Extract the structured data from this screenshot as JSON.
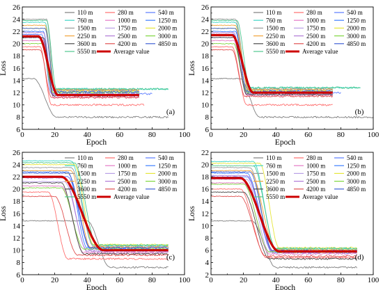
{
  "chart_data": [
    {
      "type": "line",
      "panel_label": "(a)",
      "xlabel": "Epoch",
      "ylabel": "Loss",
      "xlim": [
        0,
        100
      ],
      "ylim": [
        6,
        26
      ],
      "xticks": [
        0,
        20,
        40,
        60,
        80,
        100
      ],
      "yticks": [
        6,
        8,
        10,
        12,
        14,
        16,
        18,
        20,
        22,
        24,
        26
      ],
      "legend_position": "top-right",
      "series": [
        {
          "name": "110 m",
          "color": "#7f7f7f",
          "start": 14.3,
          "end": 8.0,
          "drop_start": 7,
          "drop_end": 21,
          "last_epoch": 90
        },
        {
          "name": "280 m",
          "color": "#ff6f6f",
          "start": 19.5,
          "end": 10.0,
          "drop_start": 11,
          "drop_end": 18,
          "last_epoch": 75
        },
        {
          "name": "540 m",
          "color": "#5b7cff",
          "start": 21.5,
          "end": 11.8,
          "drop_start": 12,
          "drop_end": 18,
          "last_epoch": 80
        },
        {
          "name": "760 m",
          "color": "#3fd6c6",
          "start": 23.5,
          "end": 12.6,
          "drop_start": 14,
          "drop_end": 20,
          "last_epoch": 90
        },
        {
          "name": "1000 m",
          "color": "#e57ac6",
          "start": 20.5,
          "end": 11.3,
          "drop_start": 13,
          "drop_end": 19,
          "last_epoch": 72
        },
        {
          "name": "1250 m",
          "color": "#3f7fff",
          "start": 22.0,
          "end": 12.3,
          "drop_start": 13,
          "drop_end": 19,
          "last_epoch": 72
        },
        {
          "name": "1500 m",
          "color": "#9a9a9a",
          "start": 24.0,
          "end": 12.5,
          "drop_start": 15,
          "drop_end": 20,
          "last_epoch": 72
        },
        {
          "name": "1750 m",
          "color": "#b8a0e6",
          "start": 21.0,
          "end": 11.8,
          "drop_start": 13,
          "drop_end": 19,
          "last_epoch": 72
        },
        {
          "name": "2000 m",
          "color": "#e6e63a",
          "start": 22.5,
          "end": 12.2,
          "drop_start": 14,
          "drop_end": 20,
          "last_epoch": 72
        },
        {
          "name": "2250 m",
          "color": "#f2a43a",
          "start": 23.0,
          "end": 12.4,
          "drop_start": 14,
          "drop_end": 20,
          "last_epoch": 72
        },
        {
          "name": "2500 m",
          "color": "#b07ad6",
          "start": 21.8,
          "end": 11.6,
          "drop_start": 13,
          "drop_end": 19,
          "last_epoch": 72
        },
        {
          "name": "3000 m",
          "color": "#7fd63f",
          "start": 20.0,
          "end": 12.0,
          "drop_start": 12,
          "drop_end": 19,
          "last_epoch": 72
        },
        {
          "name": "3600 m",
          "color": "#4a4a4a",
          "start": 21.0,
          "end": 11.5,
          "drop_start": 13,
          "drop_end": 19,
          "last_epoch": 72
        },
        {
          "name": "4200 m",
          "color": "#e05050",
          "start": 19.0,
          "end": 11.2,
          "drop_start": 11,
          "drop_end": 18,
          "last_epoch": 72
        },
        {
          "name": "4850 m",
          "color": "#3f5fd6",
          "start": 22.5,
          "end": 12.1,
          "drop_start": 14,
          "drop_end": 20,
          "last_epoch": 72
        },
        {
          "name": "5550 m",
          "color": "#50c890",
          "start": 23.8,
          "end": 12.6,
          "drop_start": 15,
          "drop_end": 21,
          "last_epoch": 90
        },
        {
          "name": "Average value",
          "color": "#cc0000",
          "start": 21.2,
          "end": 11.6,
          "drop_start": 10,
          "drop_end": 22,
          "last_epoch": 72,
          "bold": true
        }
      ]
    },
    {
      "type": "line",
      "panel_label": "(b)",
      "xlabel": "Epoch",
      "ylabel": "Loss",
      "xlim": [
        0,
        100
      ],
      "ylim": [
        6,
        26
      ],
      "xticks": [
        0,
        20,
        40,
        60,
        80,
        100
      ],
      "yticks": [
        6,
        8,
        10,
        12,
        14,
        16,
        18,
        20,
        22,
        24,
        26
      ],
      "legend_position": "top-right",
      "series": [
        {
          "name": "110 m",
          "color": "#7f7f7f",
          "start": 14.3,
          "end": 8.0,
          "drop_start": 18,
          "drop_end": 30,
          "last_epoch": 100
        },
        {
          "name": "280 m",
          "color": "#ff6f6f",
          "start": 19.5,
          "end": 10.0,
          "drop_start": 13,
          "drop_end": 22,
          "last_epoch": 75
        },
        {
          "name": "540 m",
          "color": "#5b7cff",
          "start": 21.5,
          "end": 12.0,
          "drop_start": 14,
          "drop_end": 22,
          "last_epoch": 80
        },
        {
          "name": "760 m",
          "color": "#3fd6c6",
          "start": 23.5,
          "end": 12.8,
          "drop_start": 15,
          "drop_end": 23,
          "last_epoch": 92
        },
        {
          "name": "1000 m",
          "color": "#e57ac6",
          "start": 20.5,
          "end": 11.6,
          "drop_start": 14,
          "drop_end": 22,
          "last_epoch": 75
        },
        {
          "name": "1250 m",
          "color": "#3f7fff",
          "start": 22.0,
          "end": 12.4,
          "drop_start": 15,
          "drop_end": 22,
          "last_epoch": 75
        },
        {
          "name": "1500 m",
          "color": "#9a9a9a",
          "start": 24.0,
          "end": 12.6,
          "drop_start": 15,
          "drop_end": 23,
          "last_epoch": 75
        },
        {
          "name": "1750 m",
          "color": "#b8a0e6",
          "start": 21.0,
          "end": 12.0,
          "drop_start": 14,
          "drop_end": 22,
          "last_epoch": 75
        },
        {
          "name": "2000 m",
          "color": "#e6e63a",
          "start": 22.5,
          "end": 12.3,
          "drop_start": 15,
          "drop_end": 22,
          "last_epoch": 75
        },
        {
          "name": "2250 m",
          "color": "#f2a43a",
          "start": 23.0,
          "end": 12.5,
          "drop_start": 15,
          "drop_end": 23,
          "last_epoch": 75
        },
        {
          "name": "2500 m",
          "color": "#b07ad6",
          "start": 21.8,
          "end": 11.8,
          "drop_start": 14,
          "drop_end": 22,
          "last_epoch": 75
        },
        {
          "name": "3000 m",
          "color": "#7fd63f",
          "start": 20.0,
          "end": 12.1,
          "drop_start": 14,
          "drop_end": 22,
          "last_epoch": 75
        },
        {
          "name": "3600 m",
          "color": "#4a4a4a",
          "start": 21.0,
          "end": 11.7,
          "drop_start": 14,
          "drop_end": 22,
          "last_epoch": 75
        },
        {
          "name": "4200 m",
          "color": "#e05050",
          "start": 19.0,
          "end": 11.4,
          "drop_start": 13,
          "drop_end": 21,
          "last_epoch": 75
        },
        {
          "name": "4850 m",
          "color": "#3f5fd6",
          "start": 22.5,
          "end": 12.2,
          "drop_start": 15,
          "drop_end": 22,
          "last_epoch": 75
        },
        {
          "name": "5550 m",
          "color": "#50c890",
          "start": 23.8,
          "end": 12.8,
          "drop_start": 16,
          "drop_end": 24,
          "last_epoch": 92
        },
        {
          "name": "Average value",
          "color": "#cc0000",
          "start": 21.4,
          "end": 12.0,
          "drop_start": 13,
          "drop_end": 26,
          "last_epoch": 75,
          "bold": true
        }
      ]
    },
    {
      "type": "line",
      "panel_label": "(c)",
      "xlabel": "Epoch",
      "ylabel": "Loss",
      "xlim": [
        0,
        100
      ],
      "ylim": [
        6,
        26
      ],
      "xticks": [
        0,
        20,
        40,
        60,
        80,
        100
      ],
      "yticks": [
        6,
        8,
        10,
        12,
        14,
        16,
        18,
        20,
        22,
        24,
        26
      ],
      "legend_position": "top-right",
      "series": [
        {
          "name": "110 m",
          "color": "#7f7f7f",
          "start": 14.8,
          "end": 7.2,
          "drop_start": 40,
          "drop_end": 54,
          "last_epoch": 90
        },
        {
          "name": "280 m",
          "color": "#ff6f6f",
          "start": 19.5,
          "end": 8.6,
          "drop_start": 16,
          "drop_end": 28,
          "last_epoch": 90
        },
        {
          "name": "540 m",
          "color": "#5b7cff",
          "start": 22.0,
          "end": 10.2,
          "drop_start": 28,
          "drop_end": 42,
          "last_epoch": 90
        },
        {
          "name": "760 m",
          "color": "#3fd6c6",
          "start": 24.6,
          "end": 10.8,
          "drop_start": 30,
          "drop_end": 44,
          "last_epoch": 90
        },
        {
          "name": "1000 m",
          "color": "#e57ac6",
          "start": 20.5,
          "end": 9.6,
          "drop_start": 24,
          "drop_end": 38,
          "last_epoch": 90
        },
        {
          "name": "1250 m",
          "color": "#3f7fff",
          "start": 22.8,
          "end": 10.4,
          "drop_start": 28,
          "drop_end": 40,
          "last_epoch": 90
        },
        {
          "name": "1500 m",
          "color": "#9a9a9a",
          "start": 23.5,
          "end": 10.6,
          "drop_start": 30,
          "drop_end": 44,
          "last_epoch": 90
        },
        {
          "name": "1750 m",
          "color": "#b8a0e6",
          "start": 21.2,
          "end": 10.0,
          "drop_start": 26,
          "drop_end": 40,
          "last_epoch": 90
        },
        {
          "name": "2000 m",
          "color": "#e6e63a",
          "start": 24.0,
          "end": 10.9,
          "drop_start": 32,
          "drop_end": 44,
          "last_epoch": 90
        },
        {
          "name": "2250 m",
          "color": "#f2a43a",
          "start": 23.0,
          "end": 10.5,
          "drop_start": 30,
          "drop_end": 42,
          "last_epoch": 90
        },
        {
          "name": "2500 m",
          "color": "#b07ad6",
          "start": 21.8,
          "end": 9.8,
          "drop_start": 26,
          "drop_end": 40,
          "last_epoch": 90
        },
        {
          "name": "3000 m",
          "color": "#7fd63f",
          "start": 20.2,
          "end": 10.2,
          "drop_start": 24,
          "drop_end": 38,
          "last_epoch": 90
        },
        {
          "name": "3600 m",
          "color": "#4a4a4a",
          "start": 21.0,
          "end": 9.4,
          "drop_start": 24,
          "drop_end": 38,
          "last_epoch": 90
        },
        {
          "name": "4200 m",
          "color": "#e05050",
          "start": 18.8,
          "end": 9.2,
          "drop_start": 20,
          "drop_end": 34,
          "last_epoch": 90
        },
        {
          "name": "4850 m",
          "color": "#3f5fd6",
          "start": 22.6,
          "end": 10.4,
          "drop_start": 28,
          "drop_end": 42,
          "last_epoch": 90
        },
        {
          "name": "5550 m",
          "color": "#50c890",
          "start": 24.3,
          "end": 10.8,
          "drop_start": 32,
          "drop_end": 46,
          "last_epoch": 90
        },
        {
          "name": "Average value",
          "color": "#cc0000",
          "start": 22.0,
          "end": 10.0,
          "drop_start": 24,
          "drop_end": 50,
          "last_epoch": 90,
          "bold": true
        }
      ]
    },
    {
      "type": "line",
      "panel_label": "(d)",
      "xlabel": "Epoch",
      "ylabel": "Loss",
      "xlim": [
        0,
        100
      ],
      "ylim": [
        2,
        22
      ],
      "xticks": [
        0,
        20,
        40,
        60,
        80,
        100
      ],
      "yticks": [
        2,
        4,
        6,
        8,
        10,
        12,
        14,
        16,
        18,
        20,
        22
      ],
      "legend_position": "top-right",
      "series": [
        {
          "name": "110 m",
          "color": "#7f7f7f",
          "start": 10.8,
          "end": 3.2,
          "drop_start": 25,
          "drop_end": 40,
          "last_epoch": 90
        },
        {
          "name": "280 m",
          "color": "#ff6f6f",
          "start": 16.0,
          "end": 4.8,
          "drop_start": 18,
          "drop_end": 34,
          "last_epoch": 90
        },
        {
          "name": "540 m",
          "color": "#5b7cff",
          "start": 18.0,
          "end": 5.6,
          "drop_start": 22,
          "drop_end": 38,
          "last_epoch": 90
        },
        {
          "name": "760 m",
          "color": "#3fd6c6",
          "start": 20.5,
          "end": 6.2,
          "drop_start": 26,
          "drop_end": 40,
          "last_epoch": 90
        },
        {
          "name": "1000 m",
          "color": "#e57ac6",
          "start": 17.0,
          "end": 5.4,
          "drop_start": 20,
          "drop_end": 36,
          "last_epoch": 90
        },
        {
          "name": "1250 m",
          "color": "#3f7fff",
          "start": 18.6,
          "end": 5.9,
          "drop_start": 22,
          "drop_end": 38,
          "last_epoch": 90
        },
        {
          "name": "1500 m",
          "color": "#9a9a9a",
          "start": 19.5,
          "end": 6.0,
          "drop_start": 24,
          "drop_end": 38,
          "last_epoch": 90
        },
        {
          "name": "1750 m",
          "color": "#b8a0e6",
          "start": 17.6,
          "end": 5.7,
          "drop_start": 22,
          "drop_end": 36,
          "last_epoch": 90
        },
        {
          "name": "2000 m",
          "color": "#e6e63a",
          "start": 20.2,
          "end": 6.4,
          "drop_start": 30,
          "drop_end": 42,
          "last_epoch": 90
        },
        {
          "name": "2250 m",
          "color": "#f2a43a",
          "start": 19.0,
          "end": 6.1,
          "drop_start": 24,
          "drop_end": 40,
          "last_epoch": 90
        },
        {
          "name": "2500 m",
          "color": "#b07ad6",
          "start": 18.2,
          "end": 5.8,
          "drop_start": 22,
          "drop_end": 38,
          "last_epoch": 90
        },
        {
          "name": "3000 m",
          "color": "#7fd63f",
          "start": 16.8,
          "end": 5.7,
          "drop_start": 20,
          "drop_end": 36,
          "last_epoch": 90
        },
        {
          "name": "3600 m",
          "color": "#4a4a4a",
          "start": 15.5,
          "end": 4.6,
          "drop_start": 20,
          "drop_end": 36,
          "last_epoch": 90
        },
        {
          "name": "4200 m",
          "color": "#e05050",
          "start": 14.8,
          "end": 5.0,
          "drop_start": 18,
          "drop_end": 34,
          "last_epoch": 90
        },
        {
          "name": "4850 m",
          "color": "#3f5fd6",
          "start": 18.8,
          "end": 5.9,
          "drop_start": 24,
          "drop_end": 38,
          "last_epoch": 90
        },
        {
          "name": "5550 m",
          "color": "#50c890",
          "start": 19.8,
          "end": 6.3,
          "drop_start": 26,
          "drop_end": 40,
          "last_epoch": 90
        },
        {
          "name": "Average value",
          "color": "#cc0000",
          "start": 17.8,
          "end": 5.8,
          "drop_start": 18,
          "drop_end": 42,
          "last_epoch": 90,
          "bold": true
        }
      ]
    }
  ]
}
